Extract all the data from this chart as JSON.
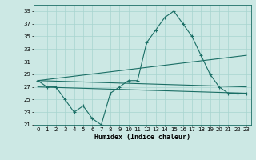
{
  "xlabel": "Humidex (Indice chaleur)",
  "ylabel": "",
  "bg_color": "#cce8e4",
  "line_color": "#1a6e65",
  "grid_color": "#a8d4cf",
  "xlim": [
    -0.5,
    23.5
  ],
  "ylim": [
    21,
    40
  ],
  "yticks": [
    21,
    23,
    25,
    27,
    29,
    31,
    33,
    35,
    37,
    39
  ],
  "xticks": [
    0,
    1,
    2,
    3,
    4,
    5,
    6,
    7,
    8,
    9,
    10,
    11,
    12,
    13,
    14,
    15,
    16,
    17,
    18,
    19,
    20,
    21,
    22,
    23
  ],
  "series": [
    {
      "x": [
        0,
        1,
        2,
        3,
        4,
        5,
        6,
        7,
        8,
        9,
        10,
        11,
        12,
        13,
        14,
        15,
        16,
        17,
        18,
        19,
        20,
        21,
        22,
        23
      ],
      "y": [
        28,
        27,
        27,
        25,
        23,
        24,
        22,
        21,
        26,
        27,
        28,
        28,
        34,
        36,
        38,
        39,
        37,
        35,
        32,
        29,
        27,
        26,
        26,
        26
      ],
      "marker": "+"
    },
    {
      "x": [
        0,
        23
      ],
      "y": [
        28,
        32
      ],
      "marker": null
    },
    {
      "x": [
        0,
        23
      ],
      "y": [
        28,
        27
      ],
      "marker": null
    },
    {
      "x": [
        0,
        23
      ],
      "y": [
        27,
        26
      ],
      "marker": null
    }
  ]
}
